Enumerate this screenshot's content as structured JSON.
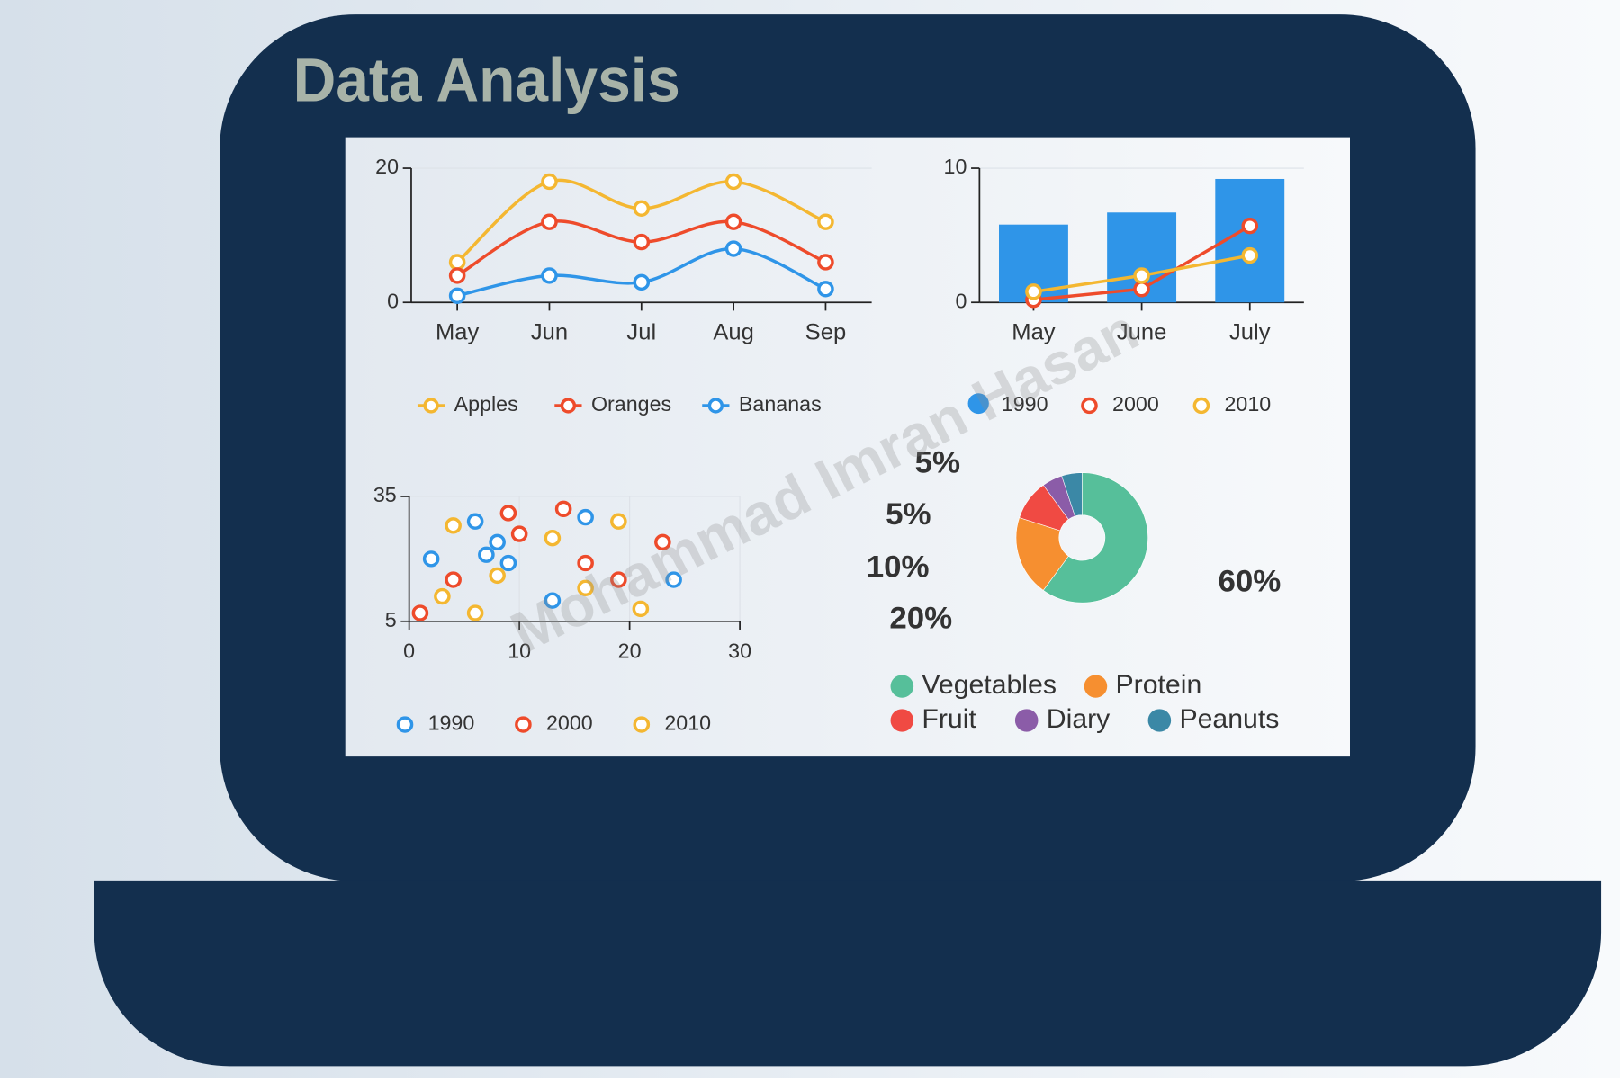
{
  "title": "Data Analysis",
  "watermark": "Mohammad Imran Hasan",
  "chart_data": [
    {
      "type": "line",
      "smooth": true,
      "categories": [
        "May",
        "Jun",
        "Jul",
        "Aug",
        "Sep"
      ],
      "series": [
        {
          "name": "Apples",
          "color": "#f4b731",
          "values": [
            6,
            18,
            14,
            18,
            12
          ]
        },
        {
          "name": "Oranges",
          "color": "#ee4b2b",
          "values": [
            4,
            12,
            9,
            12,
            6
          ]
        },
        {
          "name": "Bananas",
          "color": "#2f95e8",
          "values": [
            1,
            4,
            3,
            8,
            2
          ]
        }
      ],
      "ylim": [
        0,
        20
      ],
      "yticks": [
        0,
        20
      ],
      "grid": true,
      "legend": "bottom"
    },
    {
      "type": "bar",
      "categories": [
        "May",
        "June",
        "July"
      ],
      "series": [
        {
          "name": "1990",
          "color": "#2f95e8",
          "mark": "bar",
          "values": [
            5.8,
            6.7,
            9.2
          ]
        },
        {
          "name": "2000",
          "color": "#ee4b2b",
          "mark": "line",
          "values": [
            0.2,
            1,
            5.7
          ]
        },
        {
          "name": "2010",
          "color": "#f4b731",
          "mark": "line",
          "values": [
            0.8,
            2,
            3.5
          ]
        }
      ],
      "ylim": [
        0,
        10
      ],
      "yticks": [
        0,
        10
      ],
      "grid": true,
      "legend": "bottom"
    },
    {
      "type": "scatter",
      "series": [
        {
          "name": "1990",
          "color": "#2f95e8",
          "x": [
            2,
            6,
            8,
            7,
            9,
            13,
            16,
            24
          ],
          "values": [
            20,
            29,
            24,
            21,
            19,
            10,
            30,
            15
          ]
        },
        {
          "name": "2000",
          "color": "#ee4b2b",
          "x": [
            1,
            4,
            9,
            10,
            14,
            16,
            19,
            23
          ],
          "values": [
            7,
            15,
            31,
            26,
            32,
            19,
            15,
            24
          ]
        },
        {
          "name": "2010",
          "color": "#f4b731",
          "x": [
            3,
            4,
            6,
            8,
            13,
            16,
            19,
            21
          ],
          "values": [
            11,
            28,
            7,
            16,
            25,
            13,
            29,
            8
          ]
        }
      ],
      "xlim": [
        0,
        30
      ],
      "xticks": [
        0,
        10,
        20,
        30
      ],
      "ylim": [
        5,
        35
      ],
      "yticks": [
        5,
        35
      ],
      "grid": true,
      "legend": "bottom"
    },
    {
      "type": "pie",
      "donut": true,
      "categories": [
        "Vegetables",
        "Protein",
        "Fruit",
        "Diary",
        "Peanuts"
      ],
      "values": [
        60,
        20,
        10,
        5,
        5
      ],
      "value_labels": [
        "60%",
        "20%",
        "10%",
        "5%",
        "5%"
      ],
      "colors": [
        "#56bf9a",
        "#f68f30",
        "#f04a43",
        "#8b5ca8",
        "#3b88a6"
      ],
      "legend": "bottom"
    }
  ]
}
